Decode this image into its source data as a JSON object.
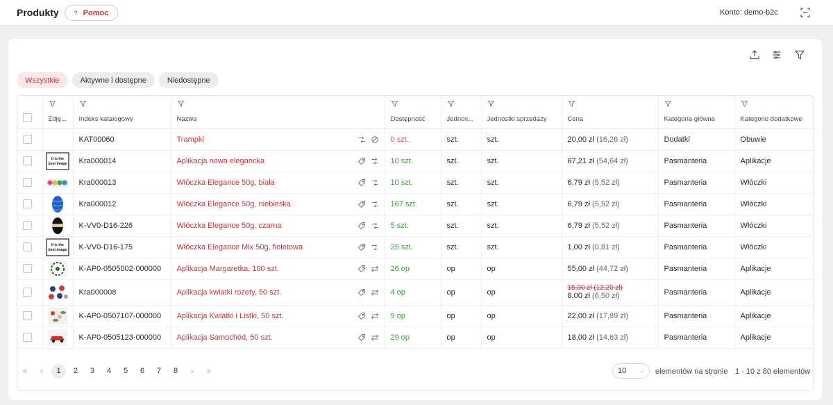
{
  "header": {
    "title": "Produkty",
    "help_label": "Pomoc",
    "help_icon": "?",
    "account": "Konto: demo-b2c"
  },
  "filters": [
    "Wszystkie",
    "Aktywne i dostępne",
    "Niedostępne"
  ],
  "columns": [
    "Zdję...",
    "Indeks katalogowy",
    "Nazwa",
    "Dostępność",
    "Jednos...",
    "Jednostki sprzedaży",
    "Cena",
    "Kategoria główna",
    "Kategorie dodatkowe"
  ],
  "rows": [
    {
      "image": "",
      "index": "KAT00060",
      "name": "Trampki",
      "availability": "0 szt.",
      "unit": "szt.",
      "sales_unit": "szt.",
      "price": "20,00 zł",
      "net": "(16,26 zł)",
      "old_price": "",
      "main_category": "Dodatki",
      "extra_categories": "Obuwie"
    },
    {
      "image": "it-is-the-best-image",
      "index": "Kra000014",
      "name": "Aplikacja nowa elegancka",
      "availability": "10 szt.",
      "unit": "szt.",
      "sales_unit": "szt.",
      "price": "67,21 zł",
      "net": "(54,64 zł)",
      "old_price": "",
      "main_category": "Pasmanteria",
      "extra_categories": "Aplikacje"
    },
    {
      "image": "colorful-logo",
      "index": "Kra000013",
      "name": "Włóczka Elegance 50g, biała",
      "availability": "10 szt.",
      "unit": "szt.",
      "sales_unit": "szt.",
      "price": "6,79 zł",
      "net": "(5,52 zł)",
      "old_price": "",
      "main_category": "Pasmanteria",
      "extra_categories": "Włóczki"
    },
    {
      "image": "blue-yarn",
      "index": "Kra000012",
      "name": "Włóczka Elegance 50g, niebieska",
      "availability": "167 szt.",
      "unit": "szt.",
      "sales_unit": "szt.",
      "price": "6,79 zł",
      "net": "(5,52 zł)",
      "old_price": "",
      "main_category": "Pasmanteria",
      "extra_categories": "Włóczki"
    },
    {
      "image": "black-yarn",
      "index": "K-VV0-D16-226",
      "name": "Włóczka Elegance 50g, czarna",
      "availability": "5 szt.",
      "unit": "szt.",
      "sales_unit": "szt.",
      "price": "6,79 zł",
      "net": "(5,52 zł)",
      "old_price": "",
      "main_category": "Pasmanteria",
      "extra_categories": "Włóczki"
    },
    {
      "image": "it-is-the-best-image",
      "index": "K-VV0-D16-175",
      "name": "Włóczka Elegance Mix 50g, fioletowa",
      "availability": "25 szt.",
      "unit": "szt.",
      "sales_unit": "szt.",
      "price": "1,00 zł",
      "net": "(0,81 zł)",
      "old_price": "",
      "main_category": "Pasmanteria",
      "extra_categories": "Włóczki"
    },
    {
      "image": "daisy-applique",
      "index": "K-AP0-0505002-000000",
      "name": "Aplikacja Margaretka, 100 szt.",
      "availability": "26 op",
      "unit": "op",
      "sales_unit": "op",
      "price": "55,00 zł",
      "net": "(44,72 zł)",
      "old_price": "",
      "main_category": "Pasmanteria",
      "extra_categories": "Aplikacje"
    },
    {
      "image": "rosette-applique",
      "index": "Kra000008",
      "name": "Aplikacja kwiatki rozety, 50 szt.",
      "availability": "4 op",
      "unit": "op",
      "sales_unit": "op",
      "price": "8,00 zł",
      "net": "(6,50 zł)",
      "old_price": "15,00 zł (12,20 zł)",
      "main_category": "Pasmanteria",
      "extra_categories": "Aplikacje"
    },
    {
      "image": "flowers-leaves-applique",
      "index": "K-AP0-0507107-000000",
      "name": "Aplikacja Kwiatki i Listki, 50 szt.",
      "availability": "9 op",
      "unit": "op",
      "sales_unit": "op",
      "price": "22,00 zł",
      "net": "(17,89 zł)",
      "old_price": "",
      "main_category": "Pasmanteria",
      "extra_categories": "Aplikacje"
    },
    {
      "image": "car-applique",
      "index": "K-AP0-0505123-000000",
      "name": "Aplikacja Samochód, 50 szt.",
      "availability": "29 op",
      "unit": "op",
      "sales_unit": "op",
      "price": "18,00 zł",
      "net": "(14,63 zł)",
      "old_price": "",
      "main_category": "Pasmanteria",
      "extra_categories": "Aplikacje"
    }
  ],
  "thumb_text": {
    "line1": "It is the",
    "line2": "best image"
  },
  "pagination": {
    "first": "«",
    "prev": "‹",
    "next": "›",
    "last": "»",
    "pages": [
      "1",
      "2",
      "3",
      "4",
      "5",
      "6",
      "7",
      "8"
    ],
    "current": "1",
    "per_page": "10",
    "per_page_label": "elementów na stronie",
    "range": "1 - 10 z 80 elementów"
  },
  "colors": {
    "accent": "#c0343d",
    "available": "#3c9a3c",
    "unavailable": "#d25545"
  },
  "icons": [
    "fullscreen-icon",
    "export-icon",
    "column-settings-icon",
    "filter-icon",
    "tag-icon",
    "units-convert-icon",
    "blocked-icon",
    "swap-icon"
  ]
}
